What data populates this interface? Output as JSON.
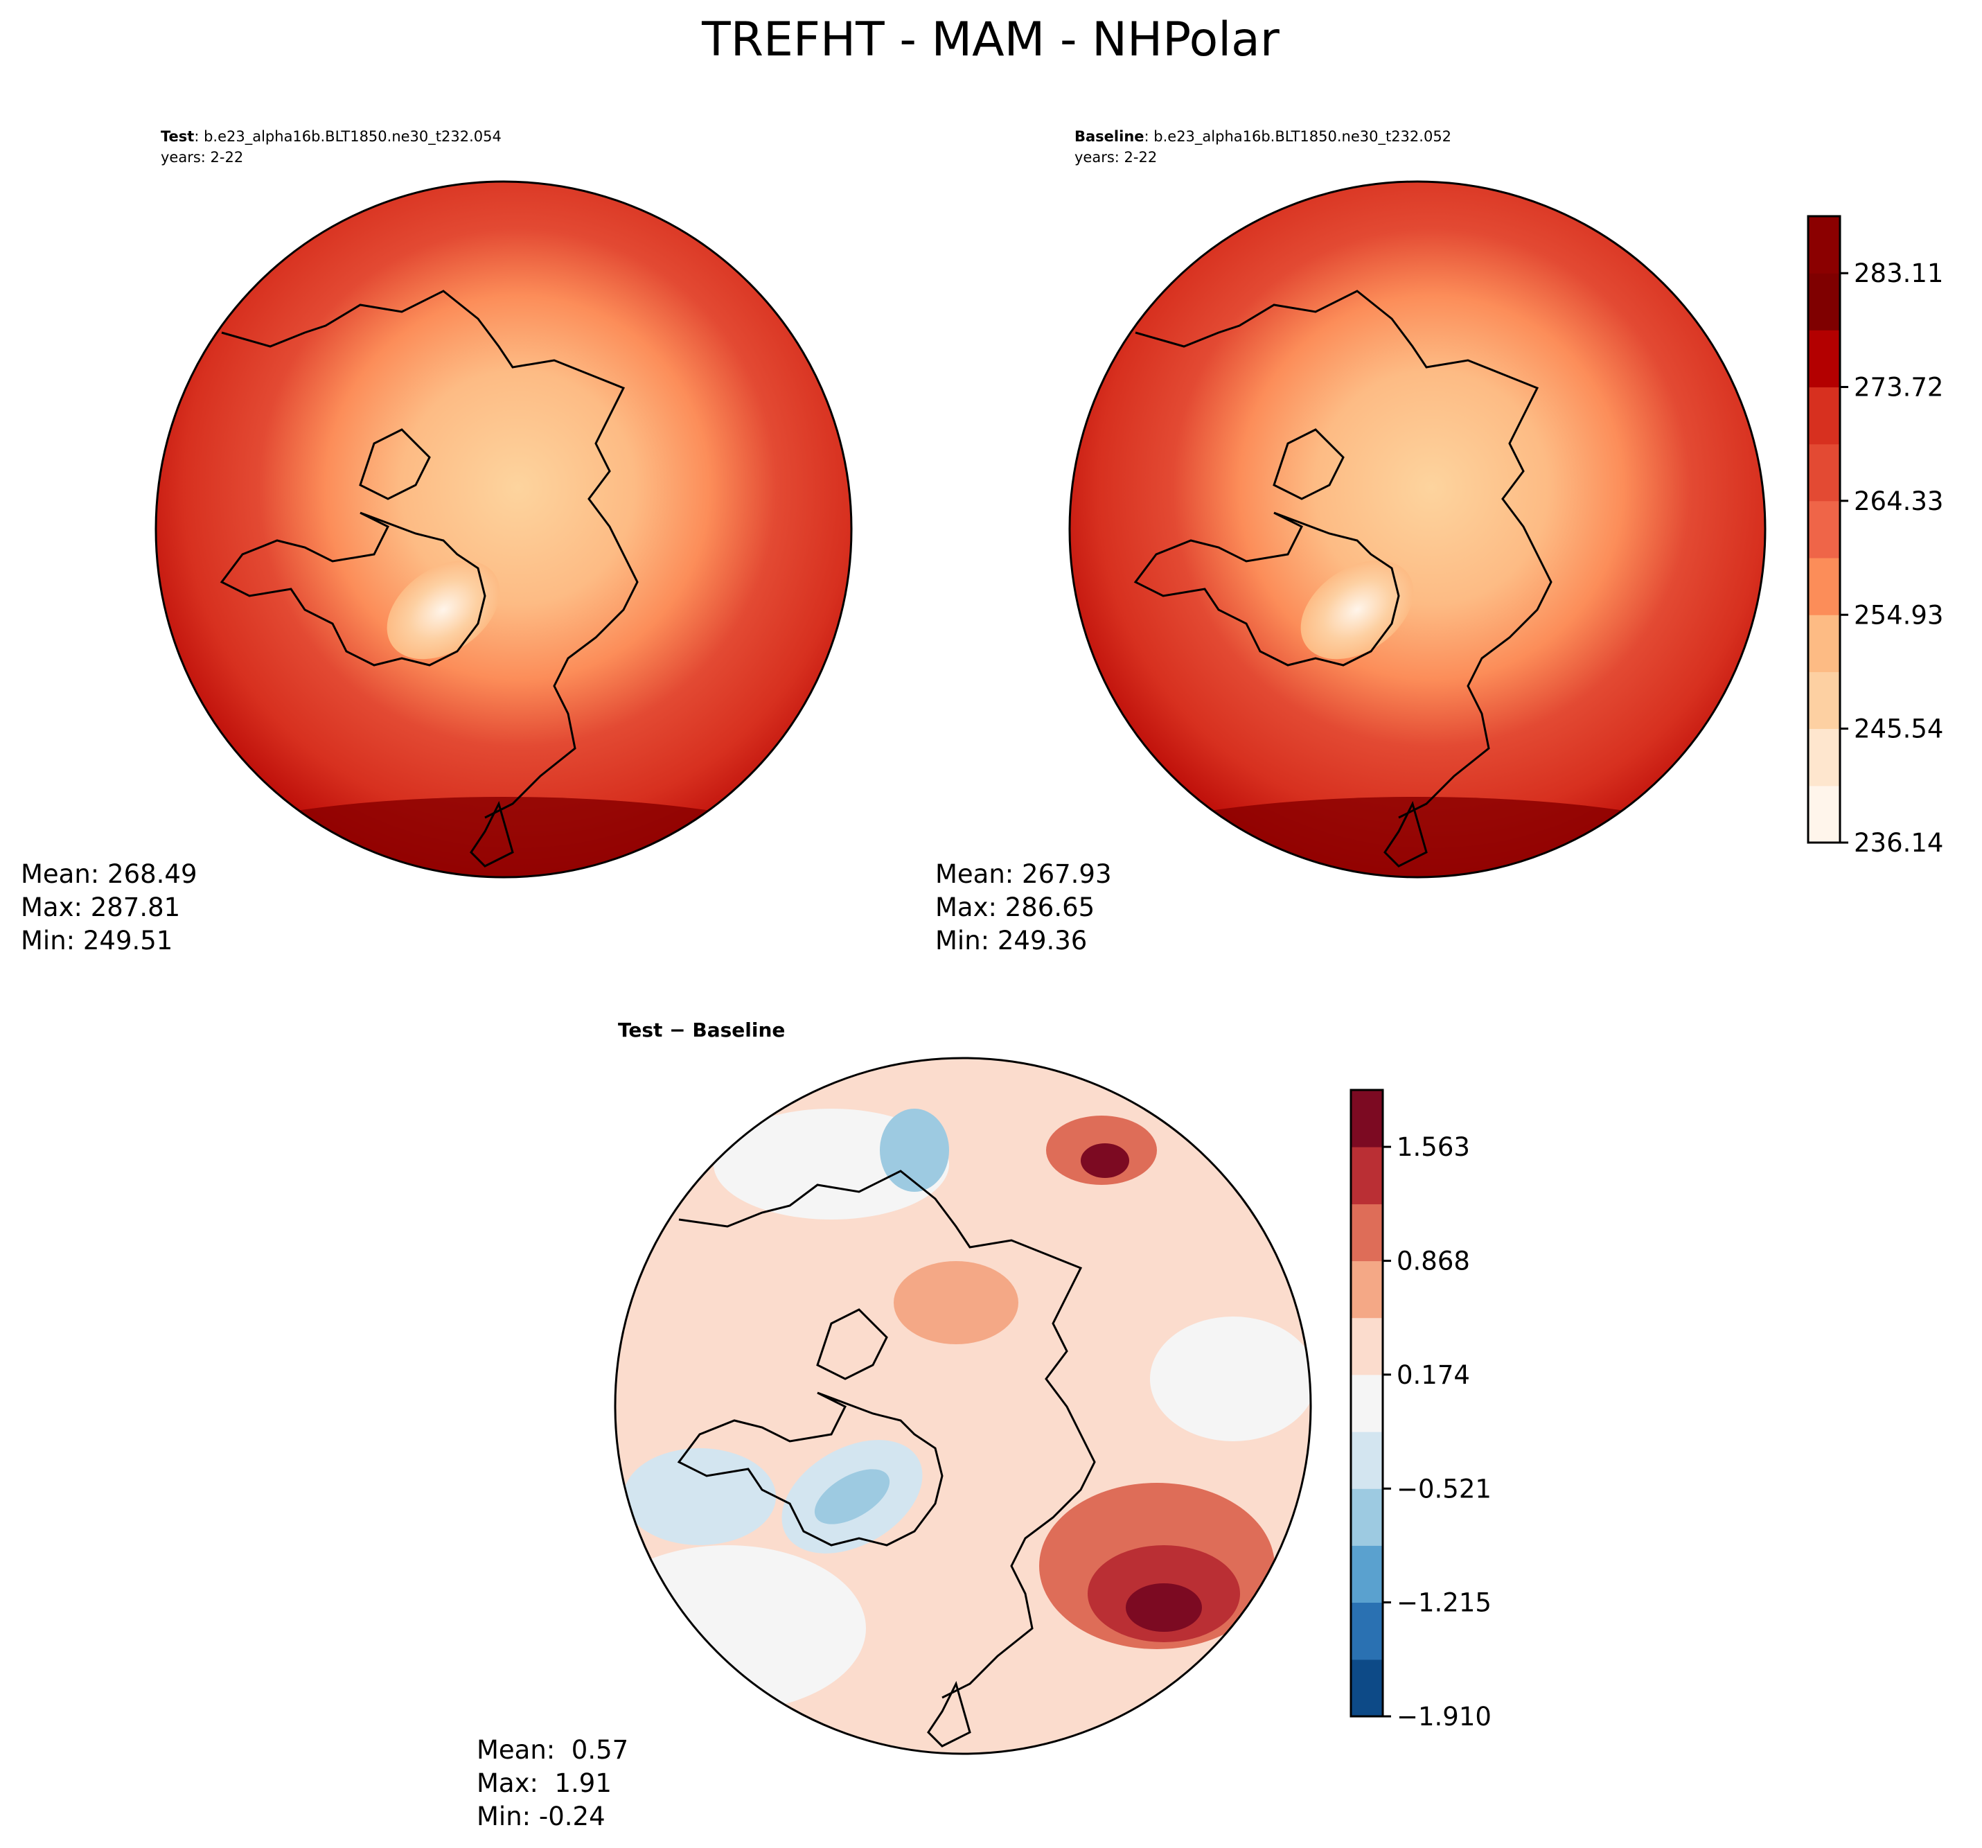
{
  "figure": {
    "title": "TREFHT - MAM - NHPolar"
  },
  "panels": {
    "test": {
      "label_bold": "Test",
      "label_rest": ": b.e23_alpha16b.BLT1850.ne30_t232.054",
      "years": "years: 2-22",
      "stats": {
        "mean": "Mean: 268.49",
        "max": "Max: 287.81",
        "min": "Min: 249.51"
      }
    },
    "baseline": {
      "label_bold": "Baseline",
      "label_rest": ": b.e23_alpha16b.BLT1850.ne30_t232.052",
      "years": "years: 2-22",
      "stats": {
        "mean": "Mean: 267.93",
        "max": "Max: 286.65",
        "min": "Min: 249.36"
      }
    },
    "diff": {
      "label": "Test − Baseline",
      "stats": {
        "mean": "Mean:  0.57",
        "max": "Max:  1.91",
        "min": "Min: -0.24"
      }
    }
  },
  "chart_data": [
    {
      "type": "heatmap",
      "title": "Test : b.e23_alpha16b.BLT1850.ne30_t232.054",
      "projection": "north-polar-stereographic",
      "variable": "TREFHT",
      "season": "MAM",
      "region": "NHPolar",
      "years": "2-22",
      "stats": {
        "mean": 268.49,
        "max": 287.81,
        "min": 249.51
      }
    },
    {
      "type": "heatmap",
      "title": "Baseline : b.e23_alpha16b.BLT1850.ne30_t232.052",
      "projection": "north-polar-stereographic",
      "variable": "TREFHT",
      "season": "MAM",
      "region": "NHPolar",
      "years": "2-22",
      "stats": {
        "mean": 267.93,
        "max": 286.65,
        "min": 249.36
      }
    },
    {
      "type": "heatmap",
      "title": "Test − Baseline",
      "projection": "north-polar-stereographic",
      "stats": {
        "mean": 0.57,
        "max": 1.91,
        "min": -0.24
      }
    }
  ],
  "colorbars": {
    "main": {
      "levels": [
        236.14,
        240.83,
        245.54,
        250.23,
        254.93,
        259.63,
        264.33,
        269.02,
        273.72,
        278.42,
        283.11,
        287.81
      ],
      "tick_labels": [
        "236.14",
        "245.54",
        "254.93",
        "264.33",
        "273.72",
        "283.11"
      ],
      "colors": [
        "#fff5eb",
        "#fee6ce",
        "#fdd0a2",
        "#fdbb84",
        "#fc8d59",
        "#ef6548",
        "#e34a33",
        "#d7301f",
        "#b30000",
        "#7f0000",
        "#8b0000"
      ]
    },
    "diff": {
      "levels": [
        -1.91,
        -1.563,
        -1.215,
        -0.868,
        -0.521,
        -0.174,
        0.174,
        0.521,
        0.868,
        1.215,
        1.563,
        1.91
      ],
      "tick_labels": [
        "−1.910",
        "−1.215",
        "−0.521",
        "0.174",
        "0.868",
        "1.563"
      ],
      "colors": [
        "#0d4a87",
        "#2a71b2",
        "#5aa1cf",
        "#9dcae1",
        "#d3e5f0",
        "#f5f5f5",
        "#fbdccd",
        "#f4a886",
        "#de6d58",
        "#ba2f34",
        "#7c0a22"
      ]
    }
  }
}
